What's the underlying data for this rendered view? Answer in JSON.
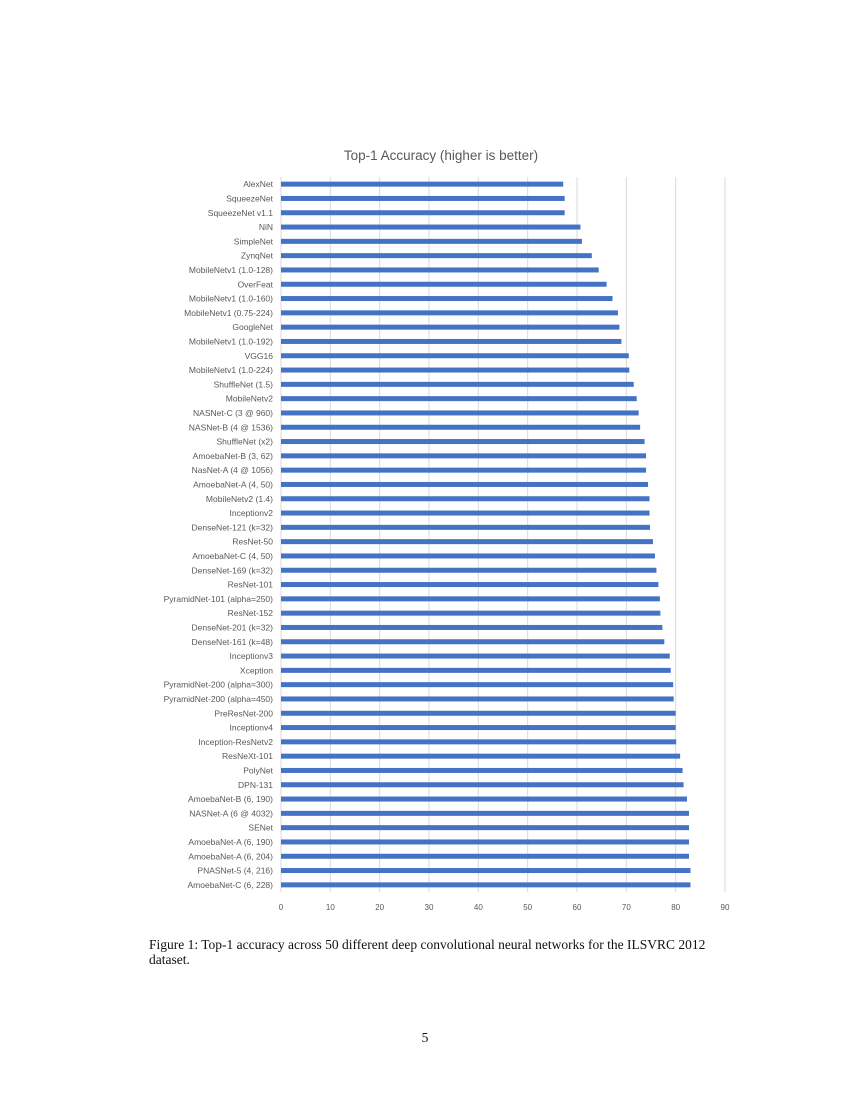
{
  "chart_data": {
    "type": "bar",
    "orientation": "horizontal",
    "title": "Top-1 Accuracy (higher is better)",
    "xlabel": "",
    "ylabel": "",
    "xlim": [
      0,
      90
    ],
    "xticks": [
      "0",
      "10",
      "20",
      "30",
      "40",
      "50",
      "60",
      "70",
      "80",
      "90"
    ],
    "grid": true,
    "bar_color": "#4472C4",
    "categories": [
      "AlexNet",
      "SqueezeNet",
      "SqueezeNet v1.1",
      "NiN",
      "SimpleNet",
      "ZynqNet",
      "MobileNetv1 (1.0-128)",
      "OverFeat",
      "MobileNetv1 (1.0-160)",
      "MobileNetv1 (0.75-224)",
      "GoogleNet",
      "MobileNetv1 (1.0-192)",
      "VGG16",
      "MobileNetv1 (1.0-224)",
      "ShuffleNet (1.5)",
      "MobileNetv2",
      "NASNet-C (3 @ 960)",
      "NASNet-B (4 @ 1536)",
      "ShuffleNet (x2)",
      "AmoebaNet-B (3, 62)",
      "NasNet-A (4 @ 1056)",
      "AmoebaNet-A (4, 50)",
      "MobileNetv2 (1.4)",
      "Inceptionv2",
      "DenseNet-121 (k=32)",
      "ResNet-50",
      "AmoebaNet-C (4, 50)",
      "DenseNet-169 (k=32)",
      "ResNet-101",
      "PyramidNet-101 (alpha=250)",
      "ResNet-152",
      "DenseNet-201 (k=32)",
      "DenseNet-161 (k=48)",
      "Inceptionv3",
      "Xception",
      "PyramidNet-200 (alpha=300)",
      "PyramidNet-200 (alpha=450)",
      "PreResNet-200",
      "Inceptionv4",
      "Inception-ResNetv2",
      "ResNeXt-101",
      "PolyNet",
      "DPN-131",
      "AmoebaNet-B (6, 190)",
      "NASNet-A (6 @ 4032)",
      "SENet",
      "AmoebaNet-A (6, 190)",
      "AmoebaNet-A (6, 204)",
      "PNASNet-5 (4, 216)",
      "AmoebaNet-C (6, 228)"
    ],
    "values": [
      57.2,
      57.5,
      57.5,
      60.7,
      61.0,
      63.0,
      64.4,
      66.0,
      67.2,
      68.3,
      68.6,
      69.0,
      70.5,
      70.6,
      71.5,
      72.1,
      72.5,
      72.8,
      73.7,
      74.0,
      74.0,
      74.4,
      74.7,
      74.7,
      74.8,
      75.4,
      75.8,
      76.1,
      76.5,
      76.8,
      76.9,
      77.3,
      77.7,
      78.8,
      79.0,
      79.5,
      79.6,
      80.0,
      80.0,
      80.1,
      80.9,
      81.4,
      81.6,
      82.3,
      82.7,
      82.7,
      82.7,
      82.7,
      83.0,
      83.0
    ]
  },
  "caption": "Figure 1: Top-1 accuracy across 50 different deep convolutional neural networks for the ILSVRC 2012 dataset.",
  "page_number": "5"
}
